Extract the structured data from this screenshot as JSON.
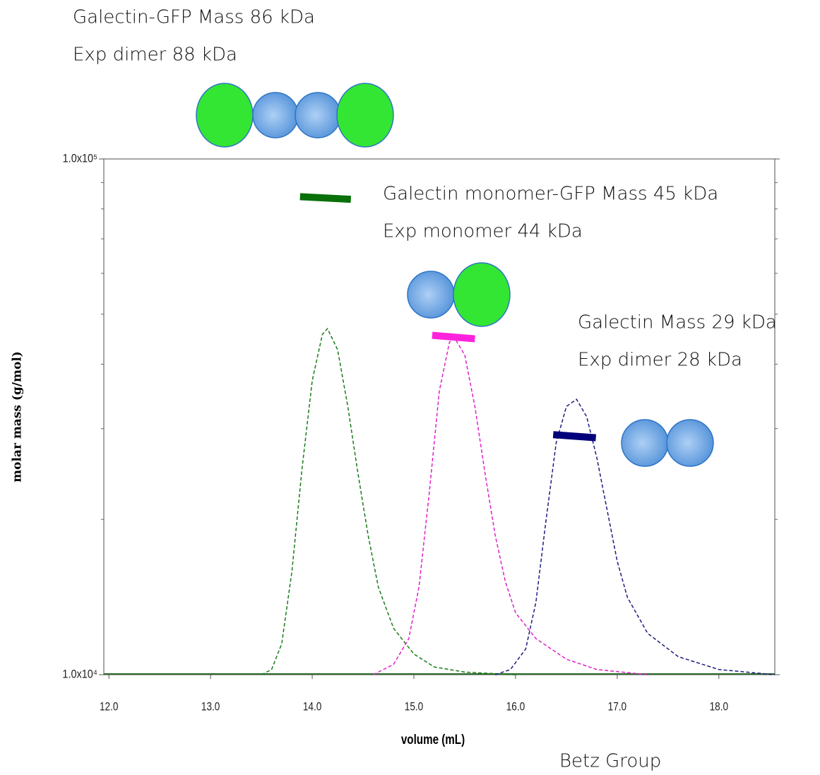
{
  "chart_data": {
    "type": "line",
    "y_label": "molar mass (g/mol)",
    "x_label": "volume (mL)",
    "xlim": [
      11.95,
      18.55
    ],
    "xticks": [
      {
        "value": 12,
        "label": "12.0"
      },
      {
        "value": 13,
        "label": "13.0"
      },
      {
        "value": 14,
        "label": "14.0"
      },
      {
        "value": 15,
        "label": "15.0"
      },
      {
        "value": 16,
        "label": "16.0"
      },
      {
        "value": 17,
        "label": "17.0"
      },
      {
        "value": 18,
        "label": "18.0"
      }
    ],
    "ylim": [
      10000,
      100000
    ],
    "log_y": true,
    "yticks": [
      {
        "value": 10000,
        "label": "1.0x10⁴"
      },
      {
        "value": 100000,
        "label": "1.0x10⁵"
      }
    ],
    "yminor": [
      20000,
      30000,
      40000,
      50000,
      60000,
      70000,
      80000,
      90000
    ],
    "y2lim": [
      0,
      1
    ],
    "series": [
      {
        "color": "#1a7a1a",
        "axis": "y2",
        "dashed": true,
        "x": [
          13.5,
          13.6,
          13.7,
          13.8,
          13.9,
          14.0,
          14.1,
          14.15,
          14.25,
          14.35,
          14.45,
          14.55,
          14.65,
          14.8,
          15.0,
          15.2,
          15.5,
          16.0
        ],
        "values": [
          0,
          0.01,
          0.06,
          0.2,
          0.4,
          0.57,
          0.66,
          0.671,
          0.63,
          0.52,
          0.39,
          0.27,
          0.17,
          0.09,
          0.04,
          0.015,
          0.005,
          0
        ]
      },
      {
        "color": "#e020c8",
        "axis": "y2",
        "dashed": true,
        "x": [
          14.6,
          14.8,
          14.95,
          15.05,
          15.15,
          15.25,
          15.35,
          15.4,
          15.5,
          15.6,
          15.7,
          15.8,
          15.9,
          16.0,
          16.2,
          16.5,
          16.8,
          17.3
        ],
        "values": [
          0,
          0.02,
          0.07,
          0.17,
          0.35,
          0.55,
          0.645,
          0.653,
          0.62,
          0.52,
          0.39,
          0.27,
          0.18,
          0.12,
          0.07,
          0.03,
          0.01,
          0
        ]
      },
      {
        "color": "#1c1c80",
        "axis": "y2",
        "dashed": true,
        "x": [
          15.8,
          15.95,
          16.1,
          16.2,
          16.3,
          16.4,
          16.5,
          16.6,
          16.7,
          16.8,
          16.9,
          17.0,
          17.1,
          17.3,
          17.6,
          18.0,
          18.55
        ],
        "values": [
          0,
          0.01,
          0.05,
          0.14,
          0.3,
          0.45,
          0.52,
          0.534,
          0.5,
          0.42,
          0.32,
          0.22,
          0.15,
          0.08,
          0.035,
          0.01,
          0
        ]
      },
      {
        "color": "#0a700a",
        "x": [
          13.88,
          14.38
        ],
        "values": [
          84500,
          83500
        ]
      },
      {
        "color": "#ff22dd",
        "x": [
          15.18,
          15.6
        ],
        "values": [
          45500,
          44800
        ]
      },
      {
        "color": "#00007a",
        "x": [
          16.37,
          16.79
        ],
        "values": [
          29200,
          28800
        ]
      }
    ],
    "annotations": [
      "Galectin-GFP Mass 86 kDa",
      "Exp dimer 88 kDa",
      "Galectin monomer-GFP Mass 45 kDa",
      "Exp monomer 44 kDa",
      "Galectin Mass 29 kDa",
      "Exp dimer 28 kDa",
      "Betz Group"
    ]
  }
}
